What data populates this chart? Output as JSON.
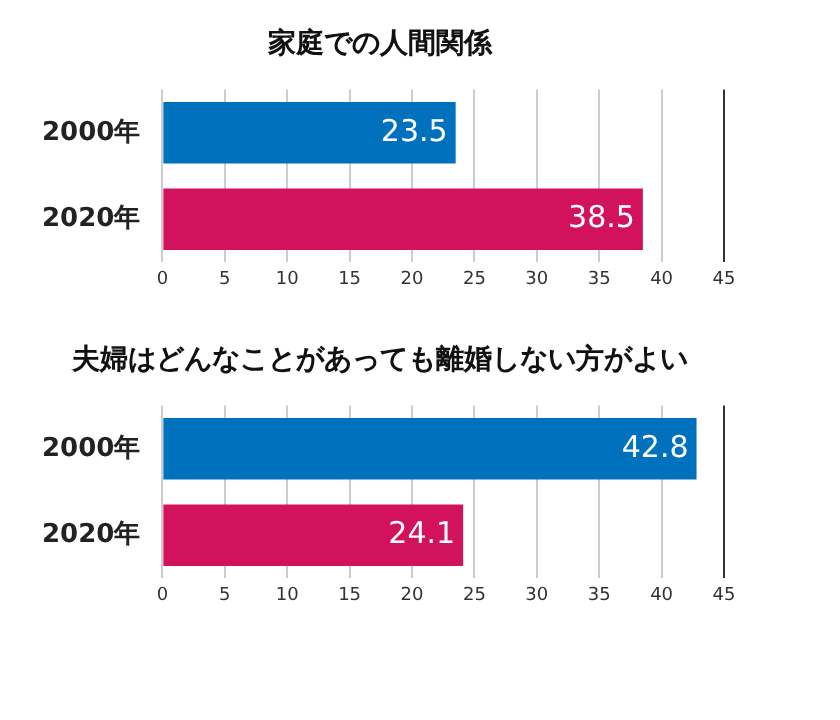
{
  "chart_data": [
    {
      "type": "bar",
      "orientation": "horizontal",
      "title": "家庭での人間関係",
      "categories": [
        "2000年",
        "2020年"
      ],
      "values": [
        23.5,
        38.5
      ],
      "colors": [
        "#0071bc",
        "#d3125d"
      ],
      "xlim": [
        0,
        45
      ],
      "xticks": [
        0,
        5,
        10,
        15,
        20,
        25,
        30,
        35,
        40,
        45
      ],
      "grid": "x",
      "data_labels": true
    },
    {
      "type": "bar",
      "orientation": "horizontal",
      "title": "夫婦はどんなことがあっても離婚しない方がよい",
      "categories": [
        "2000年",
        "2020年"
      ],
      "values": [
        42.8,
        24.1
      ],
      "colors": [
        "#0071bc",
        "#d3125d"
      ],
      "xlim": [
        0,
        45
      ],
      "xticks": [
        0,
        5,
        10,
        15,
        20,
        25,
        30,
        35,
        40,
        45
      ],
      "grid": "x",
      "data_labels": true
    }
  ]
}
